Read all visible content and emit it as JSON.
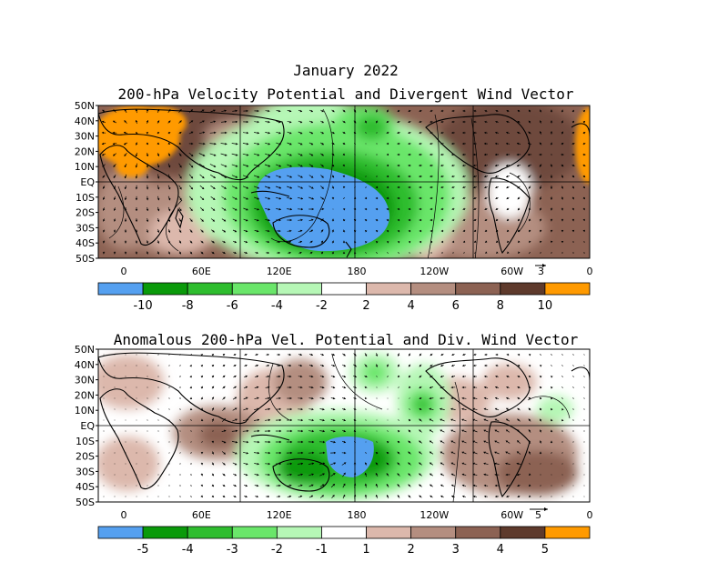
{
  "header": {
    "month_title": "January 2022",
    "top_title": "200-hPa Velocity Potential and Divergent Wind Vector",
    "bottom_title": "Anomalous 200-hPa Vel. Potential and Div. Wind Vector"
  },
  "chart_data": [
    {
      "type": "heatmap",
      "title": "200-hPa Velocity Potential and Divergent Wind Vector",
      "x_ticks": [
        "0",
        "60E",
        "120E",
        "180",
        "120W",
        "60W",
        "0"
      ],
      "y_ticks": [
        "50N",
        "40N",
        "30N",
        "20N",
        "10N",
        "EQ",
        "10S",
        "20S",
        "30S",
        "40S",
        "50S"
      ],
      "xlim": [
        0,
        360
      ],
      "ylim": [
        -50,
        50
      ],
      "reference_vector": "3",
      "colorbar": {
        "labels": [
          "-10",
          "-8",
          "-6",
          "-4",
          "-2",
          "2",
          "4",
          "6",
          "8",
          "10"
        ],
        "colors": [
          "#55a0f0",
          "#0a9a0a",
          "#2ebd2e",
          "#6ae66a",
          "#b6f7b6",
          "#ffffff",
          "#dcb8ac",
          "#b48e80",
          "#8c6253",
          "#5e3a2c",
          "#ff9a00"
        ]
      }
    },
    {
      "type": "heatmap",
      "title": "Anomalous 200-hPa Vel. Potential and Div. Wind Vector",
      "x_ticks": [
        "0",
        "60E",
        "120E",
        "180",
        "120W",
        "60W",
        "0"
      ],
      "y_ticks": [
        "50N",
        "40N",
        "30N",
        "20N",
        "10N",
        "EQ",
        "10S",
        "20S",
        "30S",
        "40S",
        "50S"
      ],
      "xlim": [
        0,
        360
      ],
      "ylim": [
        -50,
        50
      ],
      "reference_vector": "5",
      "colorbar": {
        "labels": [
          "-5",
          "-4",
          "-3",
          "-2",
          "-1",
          "1",
          "2",
          "3",
          "4",
          "5"
        ],
        "colors": [
          "#55a0f0",
          "#0a9a0a",
          "#2ebd2e",
          "#6ae66a",
          "#b6f7b6",
          "#ffffff",
          "#dcb8ac",
          "#b48e80",
          "#8c6253",
          "#5e3a2c",
          "#ff9a00"
        ]
      }
    }
  ]
}
